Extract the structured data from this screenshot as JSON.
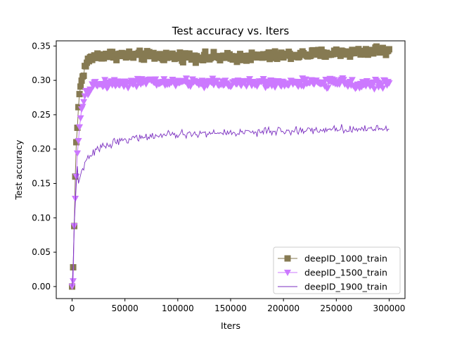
{
  "chart_data": {
    "type": "line",
    "title": "Test accuracy  vs. Iters",
    "xlabel": "Iters",
    "ylabel": "Test accuracy",
    "xlim": [
      -15000,
      315000
    ],
    "ylim": [
      -0.0175,
      0.3575
    ],
    "xticks": [
      0,
      50000,
      100000,
      150000,
      200000,
      250000,
      300000
    ],
    "xtick_labels": [
      "0",
      "50000",
      "100000",
      "150000",
      "200000",
      "250000",
      "300000"
    ],
    "yticks": [
      0.0,
      0.05,
      0.1,
      0.15,
      0.2,
      0.25,
      0.3,
      0.35
    ],
    "ytick_labels": [
      "0.00",
      "0.05",
      "0.10",
      "0.15",
      "0.20",
      "0.25",
      "0.30",
      "0.35"
    ],
    "grid": false,
    "legend_position": "lower-right",
    "sample_interval": 1000,
    "series": [
      {
        "name": "deepID_1000_train",
        "color": "#867a52",
        "marker": "square",
        "control_x": [
          0,
          1000,
          2000,
          3000,
          4000,
          5000,
          6000,
          7000,
          8000,
          10000,
          12000,
          14000,
          17000,
          20000,
          25000,
          30000,
          40000,
          60000,
          100000,
          150000,
          200000,
          250000,
          280000,
          290000,
          300000
        ],
        "control_y": [
          0.0,
          0.028,
          0.088,
          0.16,
          0.21,
          0.231,
          0.261,
          0.28,
          0.291,
          0.306,
          0.318,
          0.326,
          0.331,
          0.334,
          0.336,
          0.337,
          0.337,
          0.336,
          0.335,
          0.333,
          0.336,
          0.34,
          0.342,
          0.345,
          0.34
        ],
        "noise": 0.004
      },
      {
        "name": "deepID_1500_train",
        "color": "#cc79ff",
        "marker": "triangle-down",
        "control_x": [
          0,
          1000,
          2000,
          3000,
          4000,
          5000,
          6000,
          7000,
          8000,
          10000,
          12000,
          14000,
          17000,
          20000,
          25000,
          30000,
          40000,
          60000,
          100000,
          150000,
          200000,
          250000,
          300000
        ],
        "control_y": [
          0.0,
          0.008,
          0.088,
          0.128,
          0.16,
          0.194,
          0.212,
          0.232,
          0.245,
          0.262,
          0.274,
          0.282,
          0.288,
          0.292,
          0.294,
          0.295,
          0.296,
          0.297,
          0.297,
          0.296,
          0.296,
          0.296,
          0.294
        ],
        "noise": 0.004
      },
      {
        "name": "deepID_1900_train",
        "color": "#7b2fc0",
        "marker": "none",
        "control_x": [
          0,
          1000,
          2000,
          3000,
          4000,
          5000,
          6000,
          8000,
          10000,
          12000,
          15000,
          20000,
          25000,
          30000,
          40000,
          50000,
          70000,
          100000,
          150000,
          200000,
          250000,
          300000
        ],
        "control_y": [
          0.0,
          0.03,
          0.09,
          0.12,
          0.15,
          0.175,
          0.15,
          0.162,
          0.172,
          0.178,
          0.186,
          0.194,
          0.2,
          0.205,
          0.21,
          0.214,
          0.218,
          0.221,
          0.224,
          0.226,
          0.229,
          0.23
        ],
        "noise": 0.0035
      }
    ]
  }
}
